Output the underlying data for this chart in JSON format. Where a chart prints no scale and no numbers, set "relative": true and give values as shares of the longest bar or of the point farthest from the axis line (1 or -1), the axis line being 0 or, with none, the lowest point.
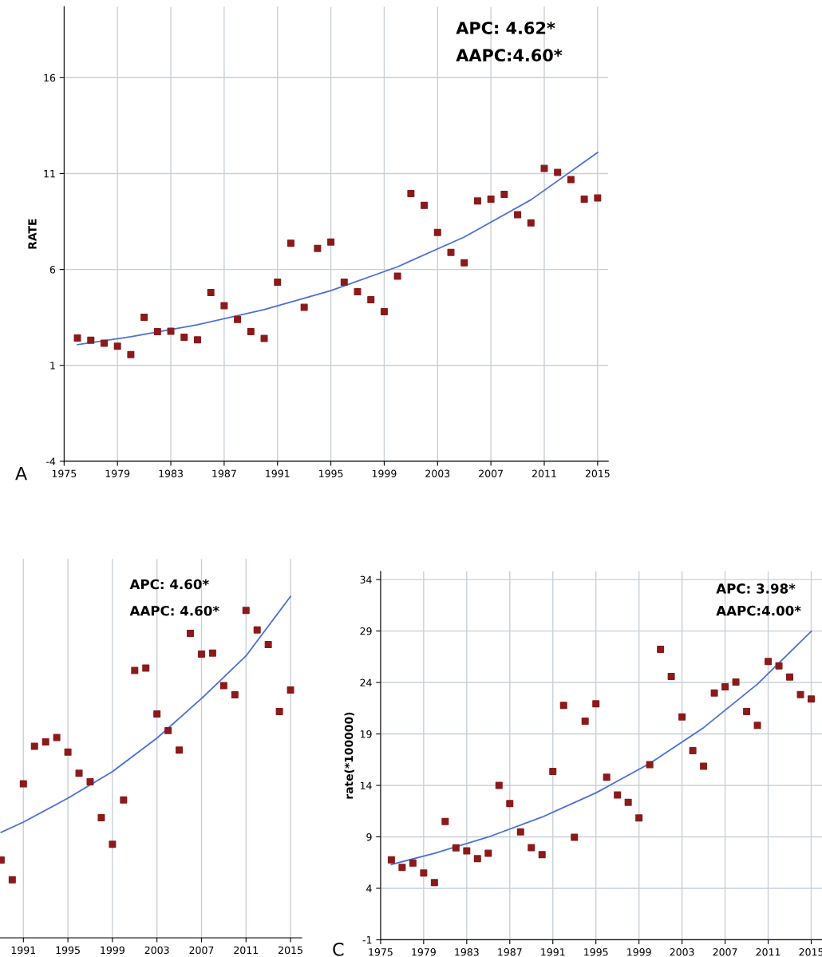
{
  "chart_data": [
    {
      "type": "scatter",
      "ylabel": "RATE",
      "annotations": [
        "APC: 4.62*",
        "AAPC:4.60*",
        "A"
      ],
      "xlim": [
        1975,
        2015.8
      ],
      "ylim": [
        -4,
        19.7
      ],
      "xticks": [
        1975,
        1979,
        1983,
        1987,
        1991,
        1995,
        1999,
        2003,
        2007,
        2011,
        2015
      ],
      "yticks": [
        -4,
        1,
        6,
        11,
        16
      ],
      "grid": true,
      "marker": "square",
      "series": [
        {
          "color": "#8b1a1a",
          "x": [
            1976,
            1977,
            1978,
            1979,
            1980,
            1981,
            1982,
            1983,
            1984,
            1985,
            1986,
            1987,
            1988,
            1989,
            1990,
            1991,
            1992,
            1993,
            1994,
            1995,
            1996,
            1997,
            1998,
            1999,
            2000,
            2001,
            2002,
            2003,
            2004,
            2005,
            2006,
            2007,
            2008,
            2009,
            2010,
            2011,
            2012,
            2013,
            2014,
            2015
          ],
          "values": [
            2.43,
            2.31,
            2.16,
            2.0,
            1.56,
            3.51,
            2.76,
            2.78,
            2.47,
            2.33,
            4.8,
            4.11,
            3.39,
            2.76,
            2.41,
            5.34,
            7.37,
            4.03,
            7.1,
            7.43,
            5.34,
            4.84,
            4.42,
            3.8,
            5.65,
            9.96,
            9.34,
            7.93,
            6.89,
            6.35,
            9.57,
            9.67,
            9.92,
            8.86,
            8.43,
            11.27,
            11.06,
            10.69,
            9.67,
            9.73
          ]
        },
        {
          "type": "line",
          "color": "#4a6fd8",
          "marker": "none",
          "x": [
            1976,
            1980,
            1985,
            1990,
            1995,
            2000,
            2005,
            2010,
            2015
          ],
          "values": [
            2.08,
            2.49,
            3.12,
            3.91,
            4.9,
            6.14,
            7.69,
            9.63,
            12.1
          ]
        }
      ]
    },
    {
      "type": "scatter",
      "relative": true,
      "tick_labels": "x",
      "annotations": [
        "APC: 4.60*",
        "AAPC: 4.60*"
      ],
      "xlim": [
        1988.9,
        2016
      ],
      "xticks": [
        1991,
        1995,
        1999,
        2003,
        2007,
        2011,
        2015
      ],
      "grid": "x",
      "marker": "square",
      "series": [
        {
          "color": "#8b1a1a",
          "x": [
            1989,
            1990,
            1991,
            1992,
            1993,
            1994,
            1995,
            1996,
            1997,
            1998,
            1999,
            2000,
            2001,
            2002,
            2003,
            2004,
            2005,
            2006,
            2007,
            2008,
            2009,
            2010,
            2011,
            2012,
            2013,
            2014,
            2015
          ],
          "values": [
            0.228,
            0.17,
            0.451,
            0.561,
            0.574,
            0.587,
            0.544,
            0.482,
            0.457,
            0.352,
            0.274,
            0.404,
            0.783,
            0.79,
            0.656,
            0.607,
            0.55,
            0.892,
            0.831,
            0.834,
            0.739,
            0.712,
            0.959,
            0.902,
            0.859,
            0.663,
            0.726
          ]
        },
        {
          "type": "line",
          "color": "#4a6fd8",
          "marker": "none",
          "x": [
            1989,
            1991,
            1995,
            1999,
            2003,
            2007,
            2011,
            2015
          ],
          "values": [
            0.309,
            0.339,
            0.409,
            0.487,
            0.585,
            0.701,
            0.826,
            1.0
          ]
        }
      ]
    },
    {
      "type": "scatter",
      "ylabel": "rate(*100000)",
      "annotations": [
        "APC: 3.98*",
        "AAPC:4.00*",
        "C"
      ],
      "xlim": [
        1975,
        2016
      ],
      "ylim": [
        -1,
        34.8
      ],
      "xticks": [
        1975,
        1979,
        1983,
        1987,
        1991,
        1995,
        1999,
        2003,
        2007,
        2011,
        2015
      ],
      "yticks": [
        -1,
        4,
        9,
        14,
        19,
        24,
        29,
        34
      ],
      "grid": true,
      "marker": "square",
      "series": [
        {
          "color": "#8b1a1a",
          "x": [
            1976,
            1977,
            1978,
            1979,
            1980,
            1981,
            1982,
            1983,
            1984,
            1985,
            1986,
            1987,
            1988,
            1989,
            1990,
            1991,
            1992,
            1993,
            1994,
            1995,
            1996,
            1997,
            1998,
            1999,
            2000,
            2001,
            2002,
            2003,
            2004,
            2005,
            2006,
            2007,
            2008,
            2009,
            2010,
            2011,
            2012,
            2013,
            2014,
            2015
          ],
          "values": [
            6.76,
            6.04,
            6.45,
            5.49,
            4.56,
            10.5,
            7.93,
            7.65,
            6.88,
            7.41,
            14.0,
            12.24,
            9.48,
            7.96,
            7.28,
            15.36,
            21.77,
            8.95,
            20.25,
            21.93,
            14.8,
            13.07,
            12.36,
            10.84,
            16.01,
            27.22,
            24.59,
            20.66,
            17.37,
            15.86,
            22.98,
            23.57,
            24.04,
            21.18,
            19.83,
            26.04,
            25.61,
            24.53,
            22.82,
            22.39
          ]
        },
        {
          "type": "line",
          "color": "#4a6fd8",
          "marker": "none",
          "x": [
            1976,
            1980,
            1985,
            1990,
            1995,
            2000,
            2005,
            2010,
            2015
          ],
          "values": [
            6.32,
            7.39,
            8.98,
            10.92,
            13.27,
            16.13,
            19.61,
            23.84,
            28.97
          ]
        }
      ]
    }
  ]
}
